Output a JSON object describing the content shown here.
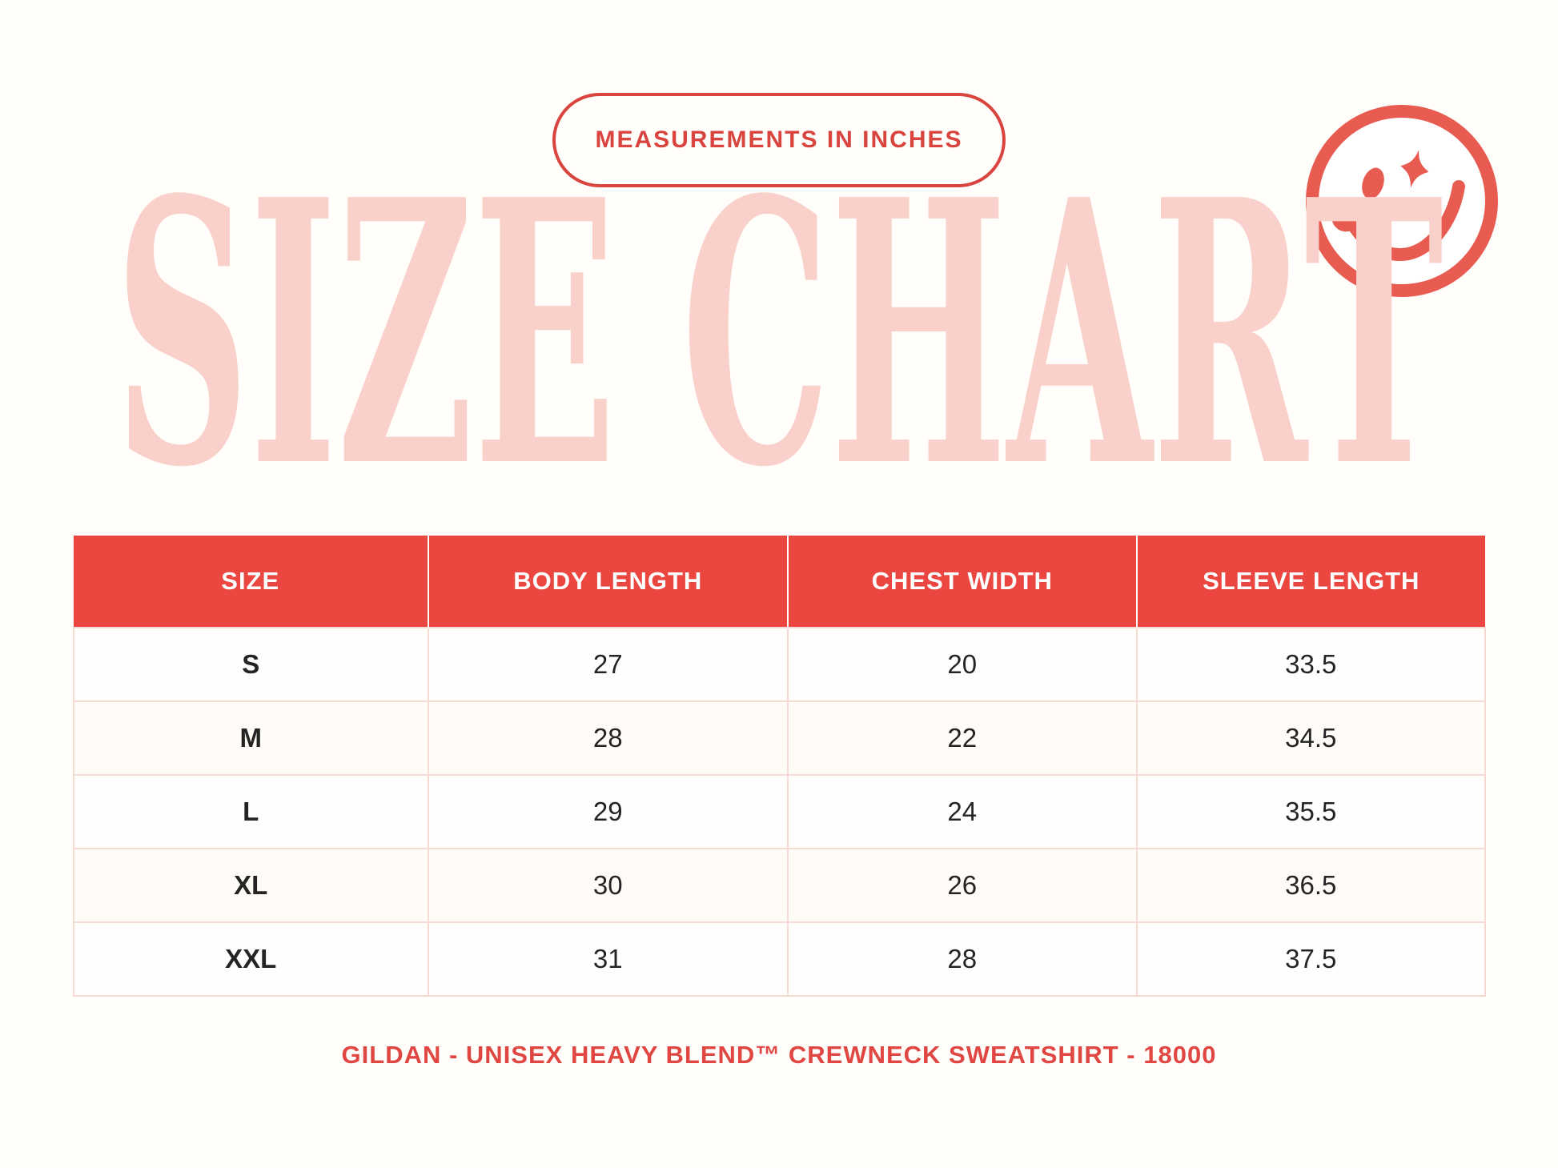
{
  "colors": {
    "background": "#FFFEFB",
    "accent_red": "#D9453E",
    "header_red": "#EB4640",
    "smiley_red": "#E75B50",
    "footer_red": "#E04742",
    "title_pink": "#FAD0CA",
    "row_border_pink": "#F6DAD4",
    "cell_text": "#242424"
  },
  "badge": {
    "label": "MEASUREMENTS IN INCHES"
  },
  "title": {
    "text": "SIZE CHART"
  },
  "icons": {
    "smiley": "smiley-face-sparkle-eye-icon"
  },
  "footer": {
    "text": "GILDAN - UNISEX HEAVY BLEND™ CREWNECK SWEATSHIRT - 18000"
  },
  "chart_data": {
    "type": "table",
    "title": "SIZE CHART",
    "subtitle": "MEASUREMENTS IN INCHES",
    "units": "inches",
    "columns": [
      "SIZE",
      "BODY LENGTH",
      "CHEST WIDTH",
      "SLEEVE LENGTH"
    ],
    "rows": [
      [
        "S",
        "27",
        "20",
        "33.5"
      ],
      [
        "M",
        "28",
        "22",
        "34.5"
      ],
      [
        "L",
        "29",
        "24",
        "35.5"
      ],
      [
        "XL",
        "30",
        "26",
        "36.5"
      ],
      [
        "XXL",
        "31",
        "28",
        "37.5"
      ]
    ],
    "footnote": "GILDAN - UNISEX HEAVY BLEND™ CREWNECK SWEATSHIRT - 18000"
  }
}
